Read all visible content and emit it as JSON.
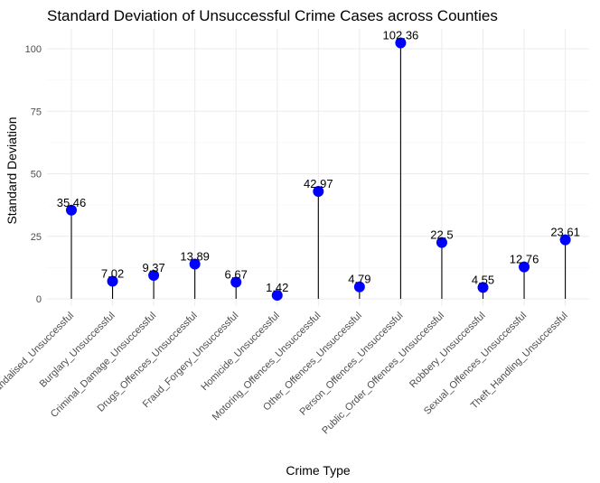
{
  "chart_data": {
    "type": "lollipop",
    "title": "Standard Deviation of Unsuccessful Crime Cases across Counties",
    "xlabel": "Crime Type",
    "ylabel": "Standard Deviation",
    "ylim": [
      -3,
      107
    ],
    "yticks": [
      0,
      25,
      50,
      75,
      100
    ],
    "grid": true,
    "point_color": "#0000ff",
    "stem_color": "#000000",
    "categories": [
      "Criminal_Damage_Unsuccessful_vandalised_Unsuccessful",
      "Burglary_Unsuccessful",
      "Criminal_Damage_Unsuccessful",
      "Drugs_Offences_Unsuccessful",
      "Fraud_Forgery_Unsuccessful",
      "Homicide_Unsuccessful",
      "Motoring_Offences_Unsuccessful",
      "Other_Offences_Unsuccessful",
      "Person_Offences_Unsuccessful",
      "Public_Order_Offences_Unsuccessful",
      "Robbery_Unsuccessful",
      "Sexual_Offences_Unsuccessful",
      "Theft_Handling_Unsuccessful"
    ],
    "tick_labels": [
      "Vandalised_Unsuccessful",
      "Burglary_Unsuccessful",
      "Criminal_Damage_Unsuccessful",
      "Drugs_Offences_Unsuccessful",
      "Fraud_Forgery_Unsuccessful",
      "Homicide_Unsuccessful",
      "Motoring_Offences_Unsuccessful",
      "Other_Offences_Unsuccessful",
      "Person_Offences_Unsuccessful",
      "Public_Order_Offences_Unsuccessful",
      "Robbery_Unsuccessful",
      "Sexual_Offences_Unsuccessful",
      "Theft_Handling_Unsuccessful"
    ],
    "values": [
      35.46,
      7.02,
      9.37,
      13.89,
      6.67,
      1.42,
      42.97,
      4.79,
      102.36,
      22.5,
      4.55,
      12.76,
      23.61
    ],
    "data_labels": [
      "35.46",
      "7.02",
      "9.37",
      "13.89",
      "6.67",
      "1.42",
      "42.97",
      "4.79",
      "102.36",
      "22.5",
      "4.55",
      "12.76",
      "23.61"
    ]
  }
}
